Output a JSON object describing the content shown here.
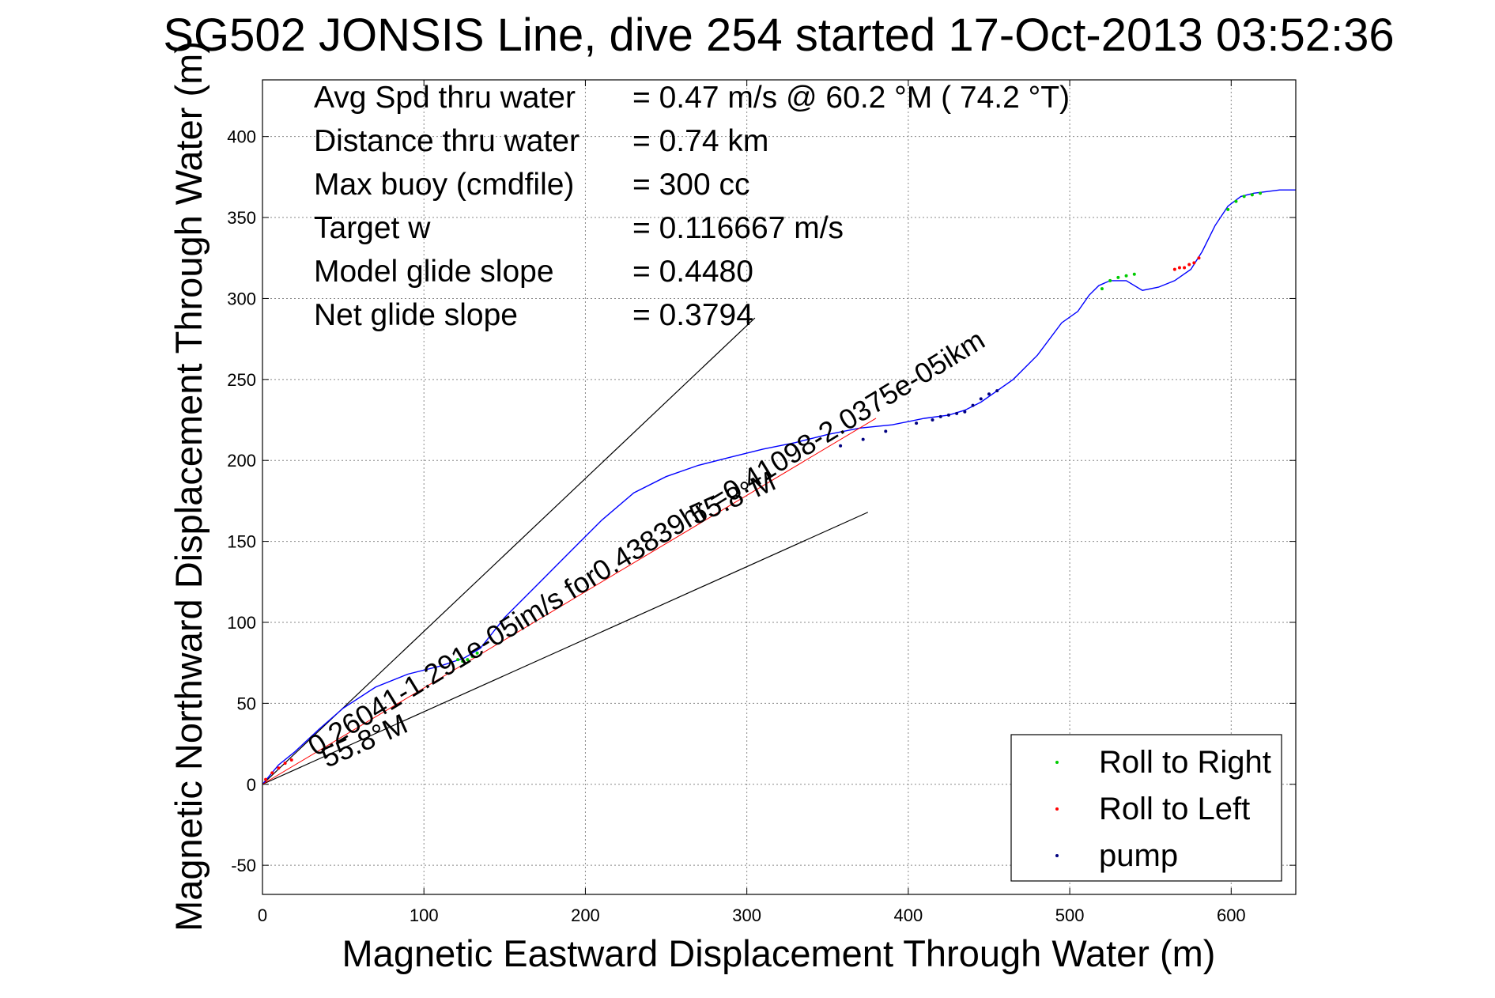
{
  "chart_data": {
    "type": "line",
    "title": "SG502 JONSIS Line, dive 254 started 17-Oct-2013 03:52:36",
    "xlabel": "Magnetic Eastward Displacement Through Water (m)",
    "ylabel": "Magnetic Northward Displacement Through Water (m)",
    "xlim": [
      0,
      640
    ],
    "ylim": [
      -68,
      435
    ],
    "xticks": [
      0,
      100,
      200,
      300,
      400,
      500,
      600
    ],
    "yticks": [
      -50,
      0,
      50,
      100,
      150,
      200,
      250,
      300,
      350,
      400
    ],
    "grid": true,
    "info_lines": [
      {
        "label": "Avg Spd thru water",
        "value": "=  0.47 m/s @  60.2 °M ( 74.2 °T)"
      },
      {
        "label": "Distance thru water",
        "value": "=  0.74 km"
      },
      {
        "label": "Max buoy (cmdfile)",
        "value": "= 300 cc"
      },
      {
        "label": "Target w",
        "value": "= 0.116667 m/s"
      },
      {
        "label": "Model glide slope",
        "value": "= 0.4480"
      },
      {
        "label": "Net glide slope",
        "value": "= 0.3794"
      }
    ],
    "track": {
      "color": "#0000ff",
      "x": [
        0,
        5,
        10,
        20,
        35,
        50,
        70,
        90,
        110,
        125,
        135,
        150,
        170,
        190,
        210,
        230,
        250,
        270,
        290,
        310,
        330,
        350,
        370,
        390,
        410,
        425,
        435,
        445,
        455,
        465,
        480,
        495,
        505,
        512,
        518,
        525,
        535,
        545,
        555,
        565,
        575,
        582,
        590,
        598,
        606,
        614,
        622,
        630,
        640
      ],
      "y": [
        0,
        6,
        12,
        20,
        34,
        47,
        60,
        68,
        73,
        78,
        84,
        103,
        123,
        143,
        163,
        180,
        190,
        197,
        202,
        207,
        211,
        216,
        220,
        222,
        226,
        228,
        231,
        236,
        243,
        250,
        265,
        285,
        292,
        302,
        308,
        311,
        311,
        305,
        307,
        311,
        318,
        329,
        345,
        357,
        363,
        365,
        366,
        367,
        367
      ]
    },
    "net_line": {
      "color": "#ff0000",
      "x": [
        0,
        380
      ],
      "y": [
        0,
        226
      ]
    },
    "reference_lines": [
      {
        "x": [
          0,
          305
        ],
        "y": [
          0,
          288
        ]
      },
      {
        "x": [
          0,
          375
        ],
        "y": [
          0,
          168
        ]
      }
    ],
    "annotations": [
      {
        "text": "55.8°M",
        "x": 40,
        "y": 10
      },
      {
        "text": "0.26041-1.291e-05im/s for0.43839hr =0.41098-2.0375e-05ikm",
        "x": 33,
        "y": 17
      },
      {
        "text": "55.8°M",
        "x": 268,
        "y": 160
      }
    ],
    "event_series": [
      {
        "name": "Roll to Right",
        "color": "#00cc00",
        "x": [
          121,
          124,
          127,
          130,
          133,
          520,
          525,
          530,
          535,
          540,
          598,
          603,
          608,
          613,
          618
        ],
        "y": [
          77,
          76,
          77,
          79,
          81,
          306,
          311,
          313,
          314,
          315,
          355,
          360,
          363,
          364,
          365
        ]
      },
      {
        "name": "Roll to Left",
        "color": "#ff0000",
        "x": [
          2,
          6,
          10,
          14,
          18,
          565,
          568,
          571,
          574,
          577,
          580
        ],
        "y": [
          3,
          7,
          10,
          13,
          15,
          318,
          319,
          319,
          321,
          322,
          325
        ]
      },
      {
        "name": "pump",
        "color": "#000080",
        "x": [
          358,
          372,
          386,
          405,
          415,
          420,
          425,
          430,
          435,
          440,
          445,
          450,
          455
        ],
        "y": [
          209,
          213,
          218,
          223,
          225,
          227,
          228,
          229,
          230,
          234,
          238,
          241,
          243
        ]
      }
    ],
    "legend": {
      "position": "bottom-right",
      "entries": [
        "Roll to Right",
        "Roll to Left",
        "pump"
      ]
    }
  }
}
